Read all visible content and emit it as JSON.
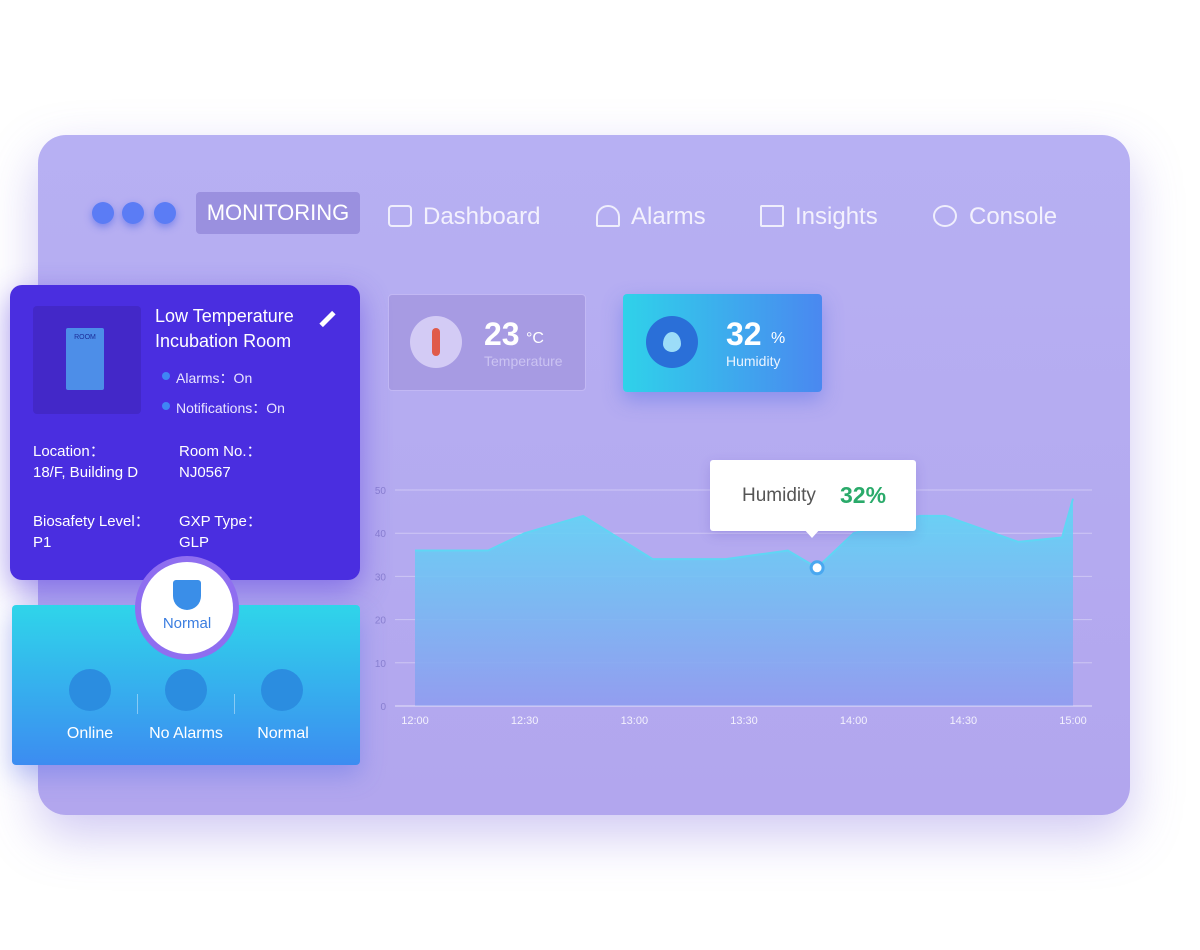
{
  "window": {
    "nav": {
      "active": "MONITORING",
      "items": [
        "Dashboard",
        "Alarms",
        "Insights",
        "Console"
      ]
    }
  },
  "stats": [
    {
      "value": 23,
      "unit": "°C",
      "label": "Temperature"
    },
    {
      "value": 32,
      "unit": "%",
      "label": "Humidity"
    }
  ],
  "room": {
    "door_label": "ROOM",
    "title_lines": [
      "Low Temperature",
      "Incubation Room"
    ],
    "status": [
      "Alarms：On",
      "Notifications：On"
    ],
    "fields": [
      {
        "label": "Location：",
        "value": "18/F, Building D"
      },
      {
        "label": "Room No.：",
        "value": "NJ0567"
      },
      {
        "label": "Biosafety Level：",
        "value": "P1"
      },
      {
        "label": "GXP Type：",
        "value": "GLP"
      }
    ]
  },
  "health": {
    "badge": "Normal",
    "items": [
      "Online",
      "No Alarms",
      "Normal"
    ]
  },
  "chart_data": {
    "type": "area",
    "x": [
      "12:00",
      "12:20",
      "12:30",
      "12:46",
      "13:05",
      "13:25",
      "13:42",
      "13:50",
      "14:00",
      "14:18",
      "14:25",
      "14:45",
      "14:57",
      "15:00"
    ],
    "series": [
      {
        "name": "Humidity",
        "color": "#5fd6f4",
        "values": [
          36,
          36,
          40,
          44,
          34,
          34,
          36,
          32,
          40,
          44,
          44,
          38,
          39,
          48
        ],
        "value_labels": [
          null,
          null,
          null,
          null,
          null,
          null,
          null,
          "32%",
          null,
          null,
          null,
          null,
          null,
          null
        ]
      }
    ],
    "xlim": [
      "12:00",
      "15:00"
    ],
    "xticks": [
      "12:00",
      "12:30",
      "13:00",
      "13:30",
      "14:00",
      "14:30",
      "15:00"
    ],
    "ylim": [
      0,
      50
    ],
    "yticks": [
      0,
      10,
      20,
      30,
      40,
      50
    ],
    "grid": true
  }
}
